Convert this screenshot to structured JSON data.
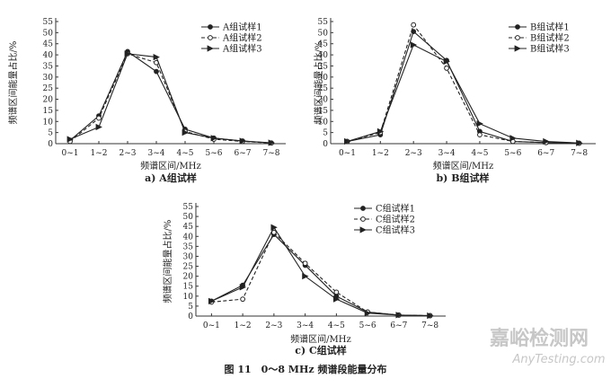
{
  "figure_caption": "图 11　0～8 MHz 频谱段能量分布",
  "watermark": {
    "brand_cn": "嘉峪检测网",
    "brand_en": "AnyTesting.com",
    "color": "#c7c7c7"
  },
  "chart_data": [
    {
      "type": "line",
      "caption": "a) A组试样",
      "xlabel": "频谱区间/MHz",
      "ylabel": "频谱区间能量占比/%",
      "categories": [
        "0~1",
        "1~2",
        "2~3",
        "3~4",
        "4~5",
        "5~6",
        "6~7",
        "7~8"
      ],
      "ylim": [
        0,
        55
      ],
      "yticks": [
        0,
        5,
        10,
        15,
        20,
        25,
        30,
        35,
        40,
        45,
        50,
        55
      ],
      "grid": false,
      "legend_position": "top-right",
      "series": [
        {
          "name": "A组试样1",
          "marker": "filled-circle",
          "dash": "solid",
          "values": [
            1.5,
            12.5,
            41.5,
            32.5,
            6.5,
            2.5,
            1.2,
            0.3
          ]
        },
        {
          "name": "A组试样2",
          "marker": "open-circle",
          "dash": "dashed",
          "values": [
            1.0,
            11.5,
            40.5,
            36.5,
            5.5,
            2.0,
            1.0,
            0.3
          ]
        },
        {
          "name": "A组试样3",
          "marker": "triangle",
          "dash": "solid",
          "values": [
            2.0,
            7.5,
            40.5,
            39.0,
            5.0,
            2.5,
            1.2,
            0.4
          ]
        }
      ]
    },
    {
      "type": "line",
      "caption": "b) B组试样",
      "xlabel": "频谱区间/MHz",
      "ylabel": "频谱区间能量占比/%",
      "categories": [
        "0~1",
        "1~2",
        "2~3",
        "3~4",
        "4~5",
        "5~6",
        "6~7",
        "7~8"
      ],
      "ylim": [
        0,
        55
      ],
      "yticks": [
        0,
        5,
        10,
        15,
        20,
        25,
        30,
        35,
        40,
        45,
        50,
        55
      ],
      "grid": false,
      "legend_position": "top-right",
      "series": [
        {
          "name": "B组试样1",
          "marker": "filled-circle",
          "dash": "solid",
          "values": [
            1.0,
            4.0,
            50.5,
            37.5,
            5.5,
            1.0,
            0.5,
            0.2
          ]
        },
        {
          "name": "B组试样2",
          "marker": "open-circle",
          "dash": "dashed",
          "values": [
            1.0,
            5.0,
            53.5,
            34.0,
            4.0,
            1.0,
            0.5,
            0.2
          ]
        },
        {
          "name": "B组试样3",
          "marker": "triangle",
          "dash": "solid",
          "values": [
            1.0,
            5.5,
            44.5,
            37.0,
            9.0,
            2.5,
            1.0,
            0.3
          ]
        }
      ]
    },
    {
      "type": "line",
      "caption": "c) C组试样",
      "xlabel": "频谱区间/MHz",
      "ylabel": "频谱区间能量占比/%",
      "categories": [
        "0~1",
        "1~2",
        "2~3",
        "3~4",
        "4~5",
        "5~6",
        "6~7",
        "7~8"
      ],
      "ylim": [
        0,
        55
      ],
      "yticks": [
        0,
        5,
        10,
        15,
        20,
        25,
        30,
        35,
        40,
        45,
        50,
        55
      ],
      "grid": false,
      "legend_position": "top-right",
      "series": [
        {
          "name": "C组试样1",
          "marker": "filled-circle",
          "dash": "solid",
          "values": [
            7.5,
            15.5,
            41.0,
            25.5,
            10.0,
            2.0,
            0.5,
            0.2
          ]
        },
        {
          "name": "C组试样2",
          "marker": "open-circle",
          "dash": "dashed",
          "values": [
            7.0,
            8.5,
            42.0,
            26.5,
            12.0,
            2.0,
            0.5,
            0.2
          ]
        },
        {
          "name": "C组试样3",
          "marker": "triangle",
          "dash": "solid",
          "values": [
            7.5,
            14.5,
            44.5,
            20.0,
            8.5,
            1.5,
            0.5,
            0.2
          ]
        }
      ]
    }
  ]
}
